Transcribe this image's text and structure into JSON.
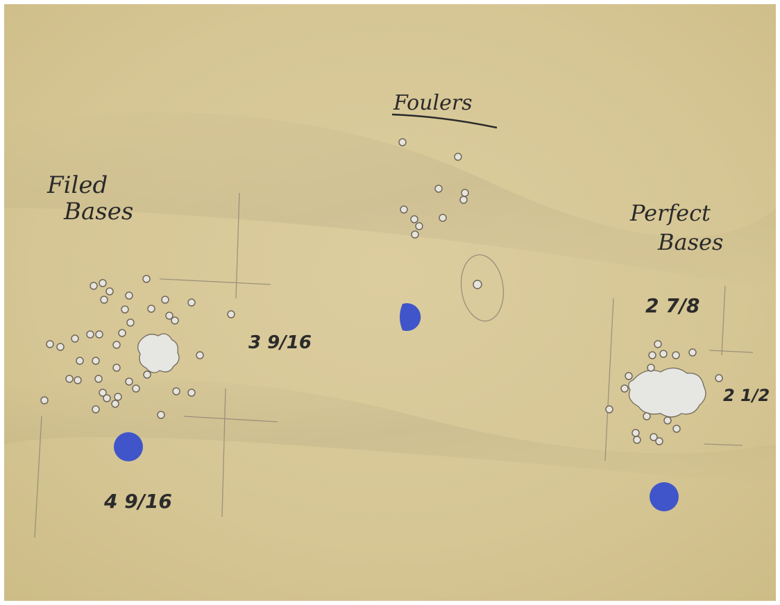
{
  "labels": {
    "filed_line1": "Filed",
    "filed_line2": "Bases",
    "foulers": "Foulers",
    "perfect_line1": "Perfect",
    "perfect_line2": "Bases",
    "filed_horizontal": "3 9/16",
    "filed_vertical": "4 9/16",
    "perfect_vertical": "2 7/8",
    "perfect_horizontal": "2 1/2"
  },
  "colors": {
    "paper": "#d8c89a",
    "paper_shadow": "#c9b882",
    "ink": "#2a2a2a",
    "aim_dot": "#3f55c9",
    "hole": "#e6e6e2",
    "pencil": "#8a8070"
  }
}
